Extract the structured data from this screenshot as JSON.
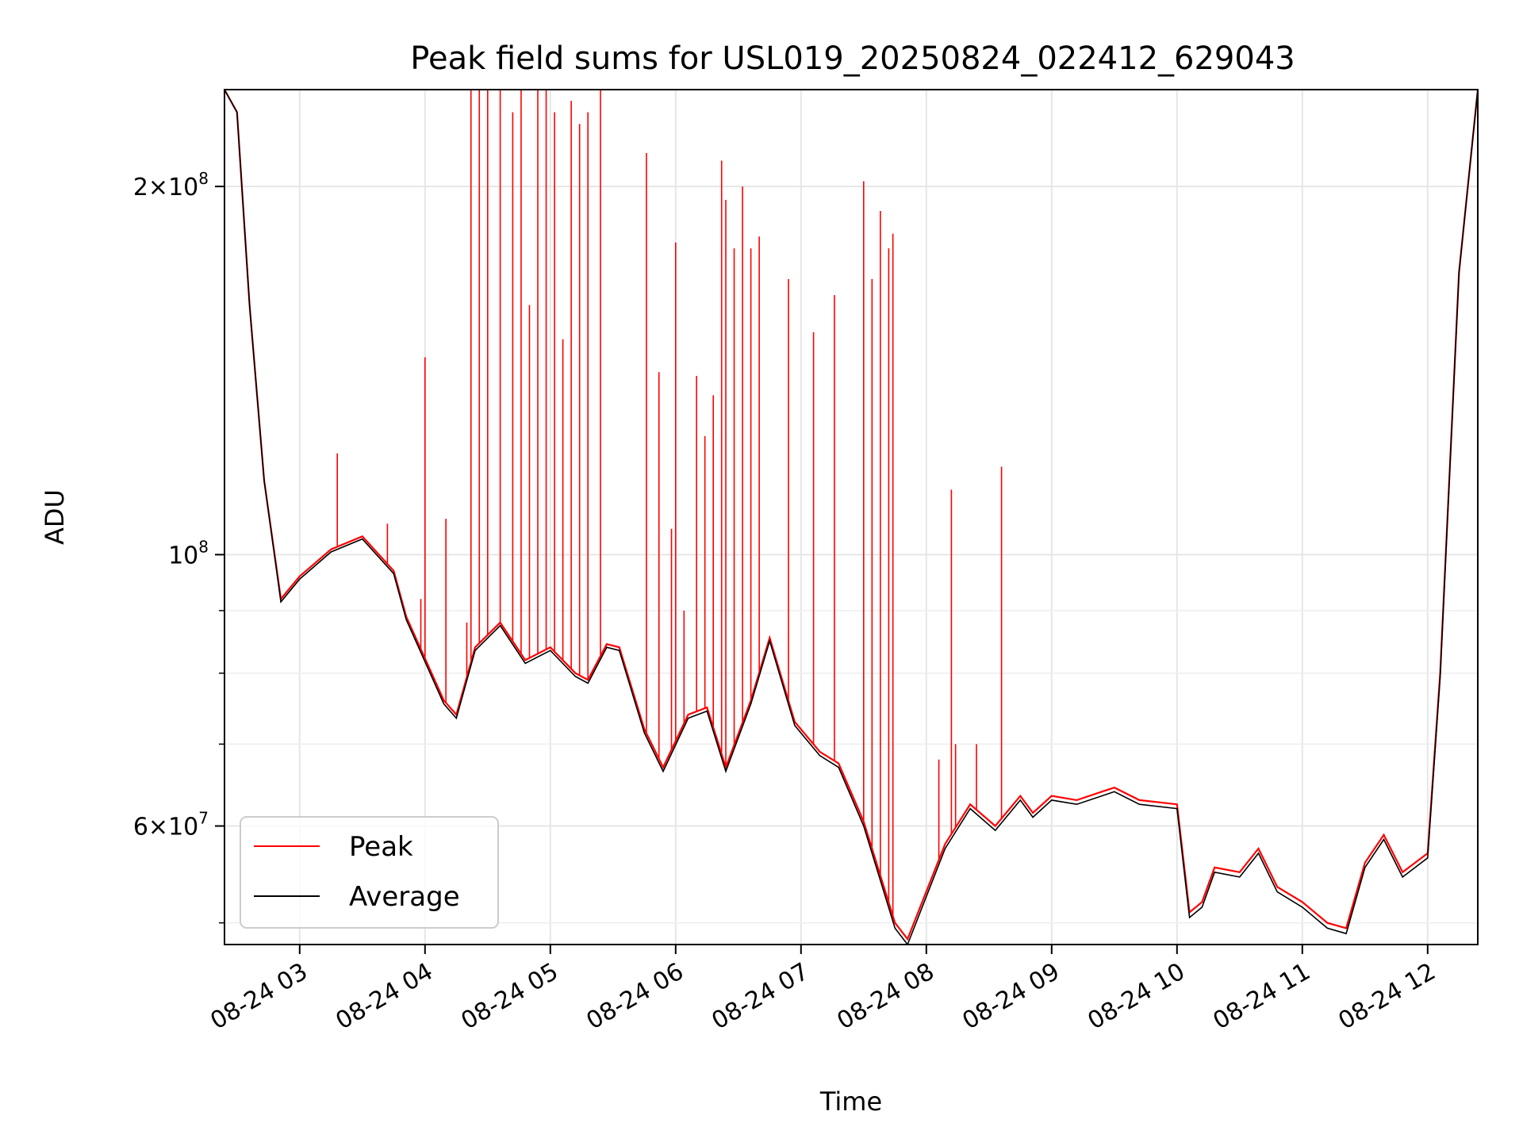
{
  "chart_data": {
    "type": "line",
    "title": "Peak field sums for USL019_20250824_022412_629043",
    "xlabel": "Time",
    "ylabel": "ADU",
    "y_scale": "log",
    "ylim": [
      48000000,
      240000000
    ],
    "xlim": [
      "2025-08-24 02:24",
      "2025-08-24 12:24"
    ],
    "grid": true,
    "legend_position": "lower-left",
    "x_ticks": [
      "08-24 03",
      "08-24 04",
      "08-24 05",
      "08-24 06",
      "08-24 07",
      "08-24 08",
      "08-24 09",
      "08-24 10",
      "08-24 11",
      "08-24 12"
    ],
    "y_ticks_major": [
      {
        "value": 200000000,
        "mantissa": "2",
        "exponent": "8"
      },
      {
        "value": 100000000,
        "mantissa": "",
        "exponent": "8"
      },
      {
        "value": 60000000,
        "mantissa": "6",
        "exponent": "7"
      }
    ],
    "y_ticks_minor": [
      50000000,
      70000000,
      80000000,
      90000000
    ],
    "series": [
      {
        "name": "Peak",
        "color": "#ff0000",
        "points": [
          [
            "2025-08-24 02:24",
            240000000
          ],
          [
            "2025-08-24 02:30",
            230000000
          ],
          [
            "2025-08-24 02:36",
            160000000
          ],
          [
            "2025-08-24 02:43",
            115000000
          ],
          [
            "2025-08-24 02:51",
            92000000
          ],
          [
            "2025-08-24 03:00",
            96000000
          ],
          [
            "2025-08-24 03:15",
            101000000
          ],
          [
            "2025-08-24 03:30",
            103500000
          ],
          [
            "2025-08-24 03:45",
            97000000
          ],
          [
            "2025-08-24 03:51",
            89000000
          ],
          [
            "2025-08-24 04:09",
            76000000
          ],
          [
            "2025-08-24 04:15",
            74000000
          ],
          [
            "2025-08-24 04:24",
            84000000
          ],
          [
            "2025-08-24 04:36",
            88000000
          ],
          [
            "2025-08-24 04:48",
            82000000
          ],
          [
            "2025-08-24 05:00",
            84000000
          ],
          [
            "2025-08-24 05:12",
            80000000
          ],
          [
            "2025-08-24 05:18",
            79000000
          ],
          [
            "2025-08-24 05:27",
            84500000
          ],
          [
            "2025-08-24 05:33",
            84000000
          ],
          [
            "2025-08-24 05:45",
            72000000
          ],
          [
            "2025-08-24 05:54",
            67000000
          ],
          [
            "2025-08-24 06:06",
            74000000
          ],
          [
            "2025-08-24 06:15",
            75000000
          ],
          [
            "2025-08-24 06:24",
            67000000
          ],
          [
            "2025-08-24 06:36",
            76000000
          ],
          [
            "2025-08-24 06:45",
            85500000
          ],
          [
            "2025-08-24 06:57",
            73000000
          ],
          [
            "2025-08-24 07:09",
            69000000
          ],
          [
            "2025-08-24 07:18",
            67500000
          ],
          [
            "2025-08-24 07:30",
            60500000
          ],
          [
            "2025-08-24 07:45",
            50000000
          ],
          [
            "2025-08-24 07:51",
            48500000
          ],
          [
            "2025-08-24 08:09",
            58000000
          ],
          [
            "2025-08-24 08:21",
            62500000
          ],
          [
            "2025-08-24 08:33",
            60000000
          ],
          [
            "2025-08-24 08:45",
            63500000
          ],
          [
            "2025-08-24 08:51",
            61500000
          ],
          [
            "2025-08-24 09:00",
            63500000
          ],
          [
            "2025-08-24 09:12",
            63000000
          ],
          [
            "2025-08-24 09:24",
            64000000
          ],
          [
            "2025-08-24 09:30",
            64500000
          ],
          [
            "2025-08-24 09:42",
            63000000
          ],
          [
            "2025-08-24 10:00",
            62500000
          ],
          [
            "2025-08-24 10:06",
            51000000
          ],
          [
            "2025-08-24 10:12",
            52000000
          ],
          [
            "2025-08-24 10:18",
            55500000
          ],
          [
            "2025-08-24 10:30",
            55000000
          ],
          [
            "2025-08-24 10:39",
            57500000
          ],
          [
            "2025-08-24 10:48",
            53500000
          ],
          [
            "2025-08-24 11:00",
            52000000
          ],
          [
            "2025-08-24 11:12",
            50000000
          ],
          [
            "2025-08-24 11:21",
            49500000
          ],
          [
            "2025-08-24 11:30",
            56000000
          ],
          [
            "2025-08-24 11:39",
            59000000
          ],
          [
            "2025-08-24 11:48",
            55000000
          ],
          [
            "2025-08-24 12:00",
            57000000
          ],
          [
            "2025-08-24 12:06",
            80000000
          ],
          [
            "2025-08-24 12:15",
            170000000
          ],
          [
            "2025-08-24 12:24",
            240000000
          ]
        ],
        "spikes": [
          [
            "2025-08-24 03:18",
            121000000
          ],
          [
            "2025-08-24 03:42",
            106000000
          ],
          [
            "2025-08-24 03:58",
            92000000
          ],
          [
            "2025-08-24 04:00",
            145000000
          ],
          [
            "2025-08-24 04:10",
            107000000
          ],
          [
            "2025-08-24 04:20",
            88000000
          ],
          [
            "2025-08-24 04:22",
            240000000
          ],
          [
            "2025-08-24 04:26",
            240000000
          ],
          [
            "2025-08-24 04:30",
            240000000
          ],
          [
            "2025-08-24 04:36",
            240000000
          ],
          [
            "2025-08-24 04:42",
            230000000
          ],
          [
            "2025-08-24 04:46",
            240000000
          ],
          [
            "2025-08-24 04:50",
            160000000
          ],
          [
            "2025-08-24 04:54",
            240000000
          ],
          [
            "2025-08-24 04:58",
            240000000
          ],
          [
            "2025-08-24 05:02",
            230000000
          ],
          [
            "2025-08-24 05:06",
            150000000
          ],
          [
            "2025-08-24 05:10",
            235000000
          ],
          [
            "2025-08-24 05:14",
            225000000
          ],
          [
            "2025-08-24 05:18",
            230000000
          ],
          [
            "2025-08-24 05:24",
            240000000
          ],
          [
            "2025-08-24 05:46",
            213000000
          ],
          [
            "2025-08-24 05:52",
            141000000
          ],
          [
            "2025-08-24 05:58",
            105000000
          ],
          [
            "2025-08-24 06:00",
            180000000
          ],
          [
            "2025-08-24 06:04",
            90000000
          ],
          [
            "2025-08-24 06:10",
            140000000
          ],
          [
            "2025-08-24 06:14",
            125000000
          ],
          [
            "2025-08-24 06:18",
            135000000
          ],
          [
            "2025-08-24 06:22",
            210000000
          ],
          [
            "2025-08-24 06:24",
            195000000
          ],
          [
            "2025-08-24 06:28",
            178000000
          ],
          [
            "2025-08-24 06:32",
            200000000
          ],
          [
            "2025-08-24 06:36",
            178000000
          ],
          [
            "2025-08-24 06:40",
            182000000
          ],
          [
            "2025-08-24 06:54",
            168000000
          ],
          [
            "2025-08-24 07:06",
            152000000
          ],
          [
            "2025-08-24 07:16",
            163000000
          ],
          [
            "2025-08-24 07:30",
            202000000
          ],
          [
            "2025-08-24 07:34",
            168000000
          ],
          [
            "2025-08-24 07:38",
            191000000
          ],
          [
            "2025-08-24 07:42",
            178000000
          ],
          [
            "2025-08-24 07:44",
            183000000
          ],
          [
            "2025-08-24 08:06",
            68000000
          ],
          [
            "2025-08-24 08:12",
            113000000
          ],
          [
            "2025-08-24 08:14",
            70000000
          ],
          [
            "2025-08-24 08:24",
            70000000
          ],
          [
            "2025-08-24 08:36",
            118000000
          ]
        ]
      },
      {
        "name": "Average",
        "color": "#000000",
        "points": [
          [
            "2025-08-24 02:24",
            240000000
          ],
          [
            "2025-08-24 02:30",
            230000000
          ],
          [
            "2025-08-24 02:36",
            160000000
          ],
          [
            "2025-08-24 02:43",
            115000000
          ],
          [
            "2025-08-24 02:51",
            91500000
          ],
          [
            "2025-08-24 03:00",
            95500000
          ],
          [
            "2025-08-24 03:15",
            100500000
          ],
          [
            "2025-08-24 03:30",
            103000000
          ],
          [
            "2025-08-24 03:45",
            96500000
          ],
          [
            "2025-08-24 03:51",
            88500000
          ],
          [
            "2025-08-24 04:09",
            75500000
          ],
          [
            "2025-08-24 04:15",
            73500000
          ],
          [
            "2025-08-24 04:24",
            83500000
          ],
          [
            "2025-08-24 04:36",
            87500000
          ],
          [
            "2025-08-24 04:48",
            81500000
          ],
          [
            "2025-08-24 05:00",
            83500000
          ],
          [
            "2025-08-24 05:12",
            79500000
          ],
          [
            "2025-08-24 05:18",
            78500000
          ],
          [
            "2025-08-24 05:27",
            84000000
          ],
          [
            "2025-08-24 05:33",
            83500000
          ],
          [
            "2025-08-24 05:45",
            71500000
          ],
          [
            "2025-08-24 05:54",
            66500000
          ],
          [
            "2025-08-24 06:06",
            73500000
          ],
          [
            "2025-08-24 06:15",
            74500000
          ],
          [
            "2025-08-24 06:24",
            66500000
          ],
          [
            "2025-08-24 06:36",
            75500000
          ],
          [
            "2025-08-24 06:45",
            85000000
          ],
          [
            "2025-08-24 06:57",
            72500000
          ],
          [
            "2025-08-24 07:09",
            68500000
          ],
          [
            "2025-08-24 07:18",
            67000000
          ],
          [
            "2025-08-24 07:30",
            60000000
          ],
          [
            "2025-08-24 07:45",
            49500000
          ],
          [
            "2025-08-24 07:51",
            48000000
          ],
          [
            "2025-08-24 08:09",
            57500000
          ],
          [
            "2025-08-24 08:21",
            62000000
          ],
          [
            "2025-08-24 08:33",
            59500000
          ],
          [
            "2025-08-24 08:45",
            63000000
          ],
          [
            "2025-08-24 08:51",
            61000000
          ],
          [
            "2025-08-24 09:00",
            63000000
          ],
          [
            "2025-08-24 09:12",
            62500000
          ],
          [
            "2025-08-24 09:24",
            63500000
          ],
          [
            "2025-08-24 09:30",
            64000000
          ],
          [
            "2025-08-24 09:42",
            62500000
          ],
          [
            "2025-08-24 10:00",
            62000000
          ],
          [
            "2025-08-24 10:06",
            50500000
          ],
          [
            "2025-08-24 10:12",
            51500000
          ],
          [
            "2025-08-24 10:18",
            55000000
          ],
          [
            "2025-08-24 10:30",
            54500000
          ],
          [
            "2025-08-24 10:39",
            57000000
          ],
          [
            "2025-08-24 10:48",
            53000000
          ],
          [
            "2025-08-24 11:00",
            51500000
          ],
          [
            "2025-08-24 11:12",
            49500000
          ],
          [
            "2025-08-24 11:21",
            49000000
          ],
          [
            "2025-08-24 11:30",
            55500000
          ],
          [
            "2025-08-24 11:39",
            58500000
          ],
          [
            "2025-08-24 11:48",
            54500000
          ],
          [
            "2025-08-24 12:00",
            56500000
          ],
          [
            "2025-08-24 12:06",
            79500000
          ],
          [
            "2025-08-24 12:15",
            170000000
          ],
          [
            "2025-08-24 12:24",
            240000000
          ]
        ]
      }
    ]
  }
}
